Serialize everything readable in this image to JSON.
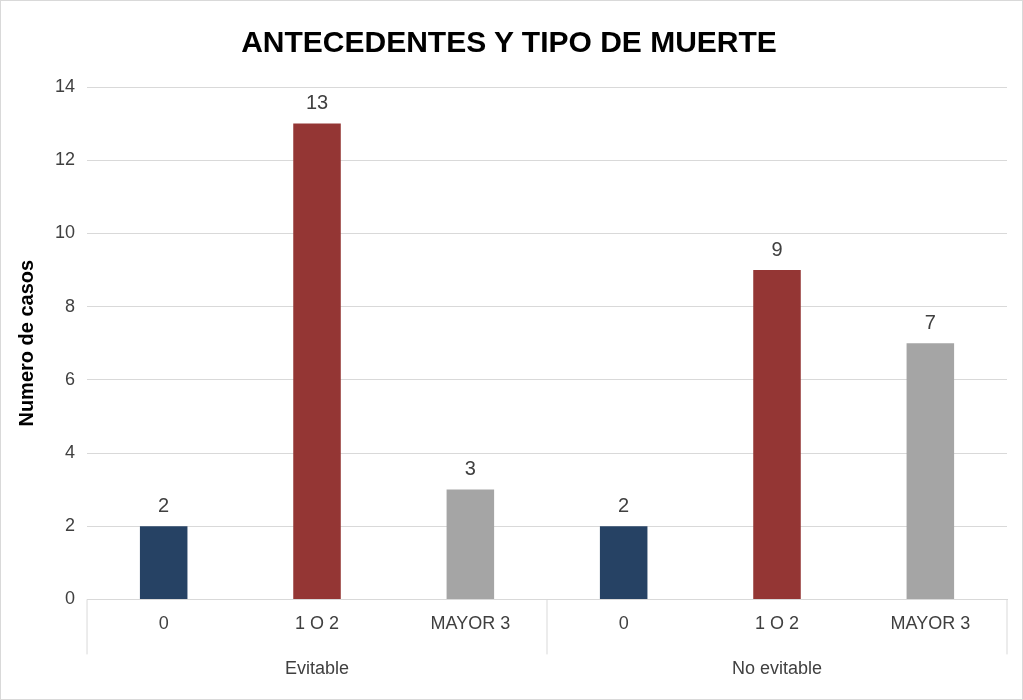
{
  "chart_data": {
    "type": "bar",
    "title": "ANTECEDENTES Y TIPO DE MUERTE",
    "ylabel": "Numero de casos",
    "categories": [
      "0",
      "1 O 2",
      "MAYOR 3",
      "0",
      "1 O 2",
      "MAYOR 3"
    ],
    "values": [
      2,
      13,
      3,
      2,
      9,
      7
    ],
    "colors": [
      "#264264",
      "#943634",
      "#a5a5a5",
      "#264264",
      "#943634",
      "#a5a5a5"
    ],
    "ylim": [
      0,
      14
    ],
    "yticks": [
      0,
      2,
      4,
      6,
      8,
      10,
      12,
      14
    ],
    "grid": "y",
    "data_labels": true,
    "legend": false,
    "annotations": [
      "Evitable",
      "No evitable"
    ]
  }
}
